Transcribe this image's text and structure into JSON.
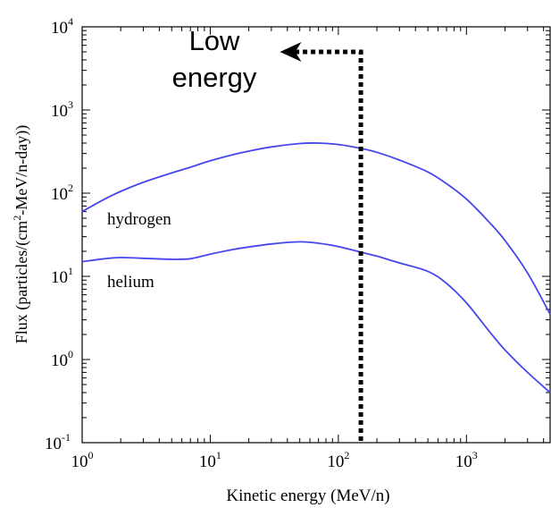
{
  "chart_data": {
    "type": "line",
    "title": "",
    "xlabel": "Kinetic energy (MeV/n)",
    "ylabel": "Flux (particles/(cm²-MeV/n-day))",
    "xscale": "log",
    "yscale": "log",
    "xlim": [
      1,
      4500
    ],
    "ylim": [
      0.1,
      10000
    ],
    "x_ticks": [
      {
        "base": "10",
        "exp": "0"
      },
      {
        "base": "10",
        "exp": "1"
      },
      {
        "base": "10",
        "exp": "2"
      },
      {
        "base": "10",
        "exp": "3"
      }
    ],
    "y_ticks": [
      {
        "base": "10",
        "exp": "-1"
      },
      {
        "base": "10",
        "exp": "0"
      },
      {
        "base": "10",
        "exp": "1"
      },
      {
        "base": "10",
        "exp": "2"
      },
      {
        "base": "10",
        "exp": "3"
      },
      {
        "base": "10",
        "exp": "4"
      }
    ],
    "grid": false,
    "series_color": "#4646ee",
    "series": [
      {
        "name": "hydrogen",
        "x": [
          1,
          1.5,
          2,
          3,
          5,
          7,
          10,
          15,
          20,
          30,
          50,
          70,
          100,
          150,
          200,
          300,
          500,
          700,
          1000,
          1500,
          2000,
          3000,
          4500
        ],
        "y": [
          60,
          85,
          105,
          135,
          175,
          205,
          245,
          290,
          320,
          360,
          395,
          400,
          385,
          345,
          310,
          250,
          180,
          130,
          85,
          45,
          27,
          11,
          3.5
        ]
      },
      {
        "name": "helium",
        "x": [
          1,
          1.5,
          2,
          3,
          5,
          7,
          10,
          15,
          20,
          30,
          50,
          70,
          100,
          150,
          200,
          300,
          500,
          700,
          1000,
          1500,
          2000,
          3000,
          4500
        ],
        "y": [
          15,
          16.3,
          16.8,
          16.5,
          16,
          16.3,
          18.5,
          21,
          22.5,
          24.5,
          26,
          25,
          22.8,
          19.5,
          17.5,
          14.5,
          11.5,
          8.2,
          4.8,
          2.2,
          1.3,
          0.7,
          0.4
        ]
      }
    ],
    "annotations": {
      "arrow_text_line1": "Low",
      "arrow_text_line2": "energy",
      "cutoff_energy": 150,
      "arrow_y": 5000,
      "arrow_target_x": 35
    }
  }
}
